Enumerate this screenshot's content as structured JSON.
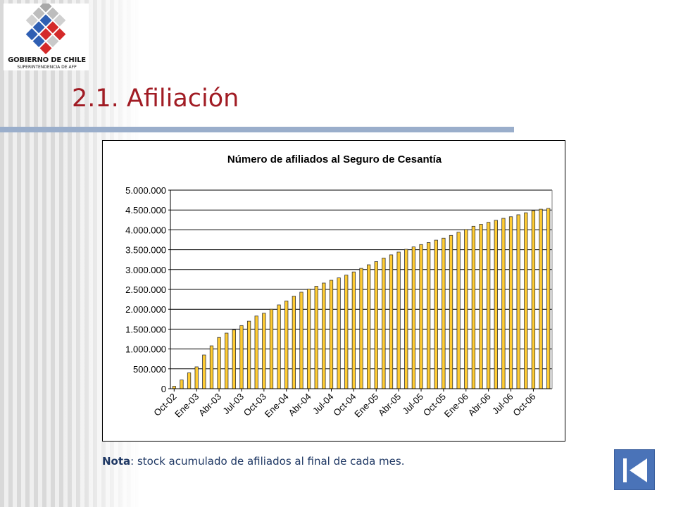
{
  "logo": {
    "line1": "GOBIERNO DE CHILE",
    "line2": "SUPERINTENDENCIA DE AFP",
    "icon": "chile-government-emblem-icon"
  },
  "slide": {
    "title": "2.1. Afiliación",
    "note_label": "Nota",
    "note_text": ": stock acumulado de afiliados al final de cada mes."
  },
  "nav": {
    "icon": "last-slide-icon"
  },
  "colors": {
    "title": "#a11c24",
    "rule": "#9aaecb",
    "bar_fill": "#ffcc33",
    "bar_stroke": "#333333",
    "note": "#1f3864",
    "nav_button": "#4a73b8"
  },
  "chart_data": {
    "type": "bar",
    "title": "Número de afiliados al Seguro de Cesantía",
    "xlabel": "",
    "ylabel": "",
    "ylim": [
      0,
      5000000
    ],
    "yticks": [
      0,
      500000,
      1000000,
      1500000,
      2000000,
      2500000,
      3000000,
      3500000,
      4000000,
      4500000,
      5000000
    ],
    "ytick_labels": [
      "0",
      "500.000",
      "1.000.000",
      "1.500.000",
      "2.000.000",
      "2.500.000",
      "3.000.000",
      "3.500.000",
      "4.000.000",
      "4.500.000",
      "5.000.000"
    ],
    "grid": true,
    "legend": false,
    "categories": [
      "Oct-02",
      "Nov-02",
      "Dic-02",
      "Ene-03",
      "Feb-03",
      "Mar-03",
      "Abr-03",
      "May-03",
      "Jun-03",
      "Jul-03",
      "Ago-03",
      "Sep-03",
      "Oct-03",
      "Nov-03",
      "Dic-03",
      "Ene-04",
      "Feb-04",
      "Mar-04",
      "Abr-04",
      "May-04",
      "Jun-04",
      "Jul-04",
      "Ago-04",
      "Sep-04",
      "Oct-04",
      "Nov-04",
      "Dic-04",
      "Ene-05",
      "Feb-05",
      "Mar-05",
      "Abr-05",
      "May-05",
      "Jun-05",
      "Jul-05",
      "Ago-05",
      "Sep-05",
      "Oct-05",
      "Nov-05",
      "Dic-05",
      "Ene-06",
      "Feb-06",
      "Mar-06",
      "Abr-06",
      "May-06",
      "Jun-06",
      "Jul-06",
      "Ago-06",
      "Sep-06",
      "Oct-06",
      "Nov-06",
      "Dic-06"
    ],
    "tick_labels": [
      "Oct-02",
      "Ene-03",
      "Abr-03",
      "Jul-03",
      "Oct-03",
      "Ene-04",
      "Abr-04",
      "Jul-04",
      "Oct-04",
      "Ene-05",
      "Abr-05",
      "Jul-05",
      "Oct-05",
      "Ene-06",
      "Abr-06",
      "Jul-06",
      "Oct-06"
    ],
    "values": [
      60000,
      220000,
      400000,
      550000,
      850000,
      1080000,
      1290000,
      1400000,
      1480000,
      1590000,
      1700000,
      1830000,
      1900000,
      2000000,
      2110000,
      2210000,
      2330000,
      2430000,
      2510000,
      2580000,
      2660000,
      2730000,
      2790000,
      2860000,
      2940000,
      3030000,
      3120000,
      3200000,
      3290000,
      3370000,
      3440000,
      3510000,
      3570000,
      3630000,
      3680000,
      3740000,
      3790000,
      3860000,
      3940000,
      4010000,
      4090000,
      4140000,
      4190000,
      4240000,
      4290000,
      4330000,
      4380000,
      4430000,
      4480000,
      4520000,
      4540000
    ]
  }
}
